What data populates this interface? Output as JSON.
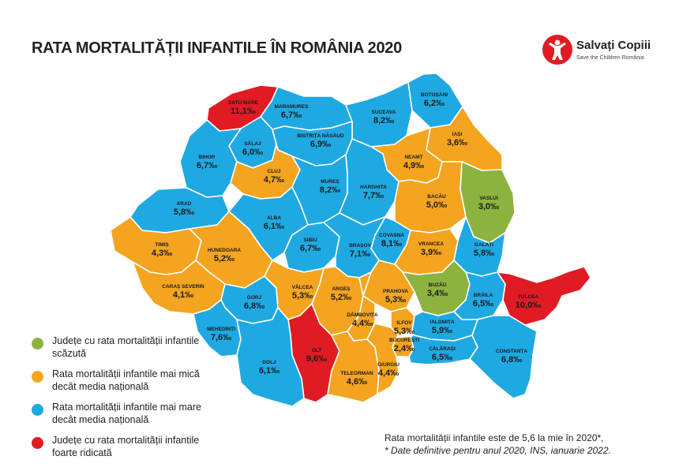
{
  "title": "RATA MORTALITĂȚII INFANTILE ÎN ROMÂNIA 2020",
  "logo": {
    "name": "Salvați Copiii",
    "subtitle": "Save the Children România"
  },
  "colors": {
    "green": "#8cb33f",
    "orange": "#f5a41f",
    "blue": "#1fa9e3",
    "red": "#e01b24"
  },
  "legend": [
    {
      "color": "green",
      "text": "Județe cu rata mortalității infantile scăzută"
    },
    {
      "color": "orange",
      "text": "Rata mortalității infantile mai mică decât media națională"
    },
    {
      "color": "blue",
      "text": "Rata mortalității infantile mai mare decât media națională"
    },
    {
      "color": "red",
      "text": "Județe cu rata mortalității infantile foarte ridicată"
    }
  ],
  "counties": [
    {
      "id": "satu-mare",
      "name": "SATU MARE",
      "value": "11,1‰",
      "category": "red"
    },
    {
      "id": "maramures",
      "name": "MARAMUREȘ",
      "value": "6,7‰",
      "category": "blue"
    },
    {
      "id": "suceava",
      "name": "SUCEAVA",
      "value": "8,2‰",
      "category": "blue"
    },
    {
      "id": "botosani",
      "name": "BOTOȘANI",
      "value": "6,2‰",
      "category": "blue"
    },
    {
      "id": "salaj",
      "name": "SĂLAJ",
      "value": "6,0‰",
      "category": "blue"
    },
    {
      "id": "bistrita",
      "name": "BISTRIȚA NĂSĂUD",
      "value": "6,9‰",
      "category": "blue"
    },
    {
      "id": "iasi",
      "name": "IAȘI",
      "value": "3,6‰",
      "category": "orange"
    },
    {
      "id": "bihor",
      "name": "BIHOR",
      "value": "6,7‰",
      "category": "blue"
    },
    {
      "id": "cluj",
      "name": "CLUJ",
      "value": "4,7‰",
      "category": "orange"
    },
    {
      "id": "neamt",
      "name": "NEAMȚ",
      "value": "4,9‰",
      "category": "orange"
    },
    {
      "id": "mures",
      "name": "MUREȘ",
      "value": "8,2‰",
      "category": "blue"
    },
    {
      "id": "harghita",
      "name": "HARGHITA",
      "value": "7,7‰",
      "category": "blue"
    },
    {
      "id": "vaslui",
      "name": "VASLUI",
      "value": "3,0‰",
      "category": "green"
    },
    {
      "id": "bacau",
      "name": "BACĂU",
      "value": "5,0‰",
      "category": "orange"
    },
    {
      "id": "arad",
      "name": "ARAD",
      "value": "5,8‰",
      "category": "blue"
    },
    {
      "id": "alba",
      "name": "ALBA",
      "value": "6,1‰",
      "category": "blue"
    },
    {
      "id": "covasna",
      "name": "COVASNA",
      "value": "8,1‰",
      "category": "blue"
    },
    {
      "id": "timis",
      "name": "TIMIȘ",
      "value": "4,3‰",
      "category": "orange"
    },
    {
      "id": "hunedoara",
      "name": "HUNEDOARA",
      "value": "5,2‰",
      "category": "orange"
    },
    {
      "id": "sibiu",
      "name": "SIBIU",
      "value": "6,7‰",
      "category": "blue"
    },
    {
      "id": "brasov",
      "name": "BRAȘOV",
      "value": "7,1‰",
      "category": "blue"
    },
    {
      "id": "vrancea",
      "name": "VRANCEA",
      "value": "3,9‰",
      "category": "orange"
    },
    {
      "id": "galati",
      "name": "GALAȚI",
      "value": "5,8‰",
      "category": "blue"
    },
    {
      "id": "caras-severin",
      "name": "CARAȘ SEVERIN",
      "value": "4,1‰",
      "category": "orange"
    },
    {
      "id": "gorj",
      "name": "GORJ",
      "value": "6,8‰",
      "category": "blue"
    },
    {
      "id": "valcea",
      "name": "VÂLCEA",
      "value": "5,3‰",
      "category": "orange"
    },
    {
      "id": "arges",
      "name": "ARGEȘ",
      "value": "5,2‰",
      "category": "orange"
    },
    {
      "id": "prahova",
      "name": "PRAHOVA",
      "value": "5,3‰",
      "category": "orange"
    },
    {
      "id": "buzau",
      "name": "BUZĂU",
      "value": "3,4‰",
      "category": "green"
    },
    {
      "id": "braila",
      "name": "BRĂILA",
      "value": "6,5‰",
      "category": "blue"
    },
    {
      "id": "tulcea",
      "name": "TULCEA",
      "value": "10,0‰",
      "category": "red"
    },
    {
      "id": "mehedinti",
      "name": "MEHEDINȚI",
      "value": "7,6‰",
      "category": "blue"
    },
    {
      "id": "dambovita",
      "name": "DÂMBOVIȚA",
      "value": "4,4‰",
      "category": "orange"
    },
    {
      "id": "ilfov",
      "name": "ILFOV",
      "value": "5,3‰",
      "category": "orange"
    },
    {
      "id": "bucuresti",
      "name": "BUCUREȘTI",
      "value": "2,4‰",
      "category": "orange"
    },
    {
      "id": "ialomita",
      "name": "IALOMIȚA",
      "value": "5,9‰",
      "category": "blue"
    },
    {
      "id": "olt",
      "name": "OLT",
      "value": "9,6‰",
      "category": "red"
    },
    {
      "id": "dolj",
      "name": "DOLJ",
      "value": "6,1‰",
      "category": "blue"
    },
    {
      "id": "teleorman",
      "name": "TELEORMAN",
      "value": "4,6‰",
      "category": "orange"
    },
    {
      "id": "giurgiu",
      "name": "GIURGIU",
      "value": "4,4‰",
      "category": "orange"
    },
    {
      "id": "calarasi",
      "name": "CĂLĂRAȘI",
      "value": "6,5‰",
      "category": "blue"
    },
    {
      "id": "constanta",
      "name": "CONSTANȚA",
      "value": "6,8‰",
      "category": "blue"
    }
  ],
  "footnote": {
    "main": "Rata mortalității infantile este de 5,6 la mie în 2020*,",
    "note": "* Date definitive pentru anul 2020, INS, ianuarie 2022."
  }
}
